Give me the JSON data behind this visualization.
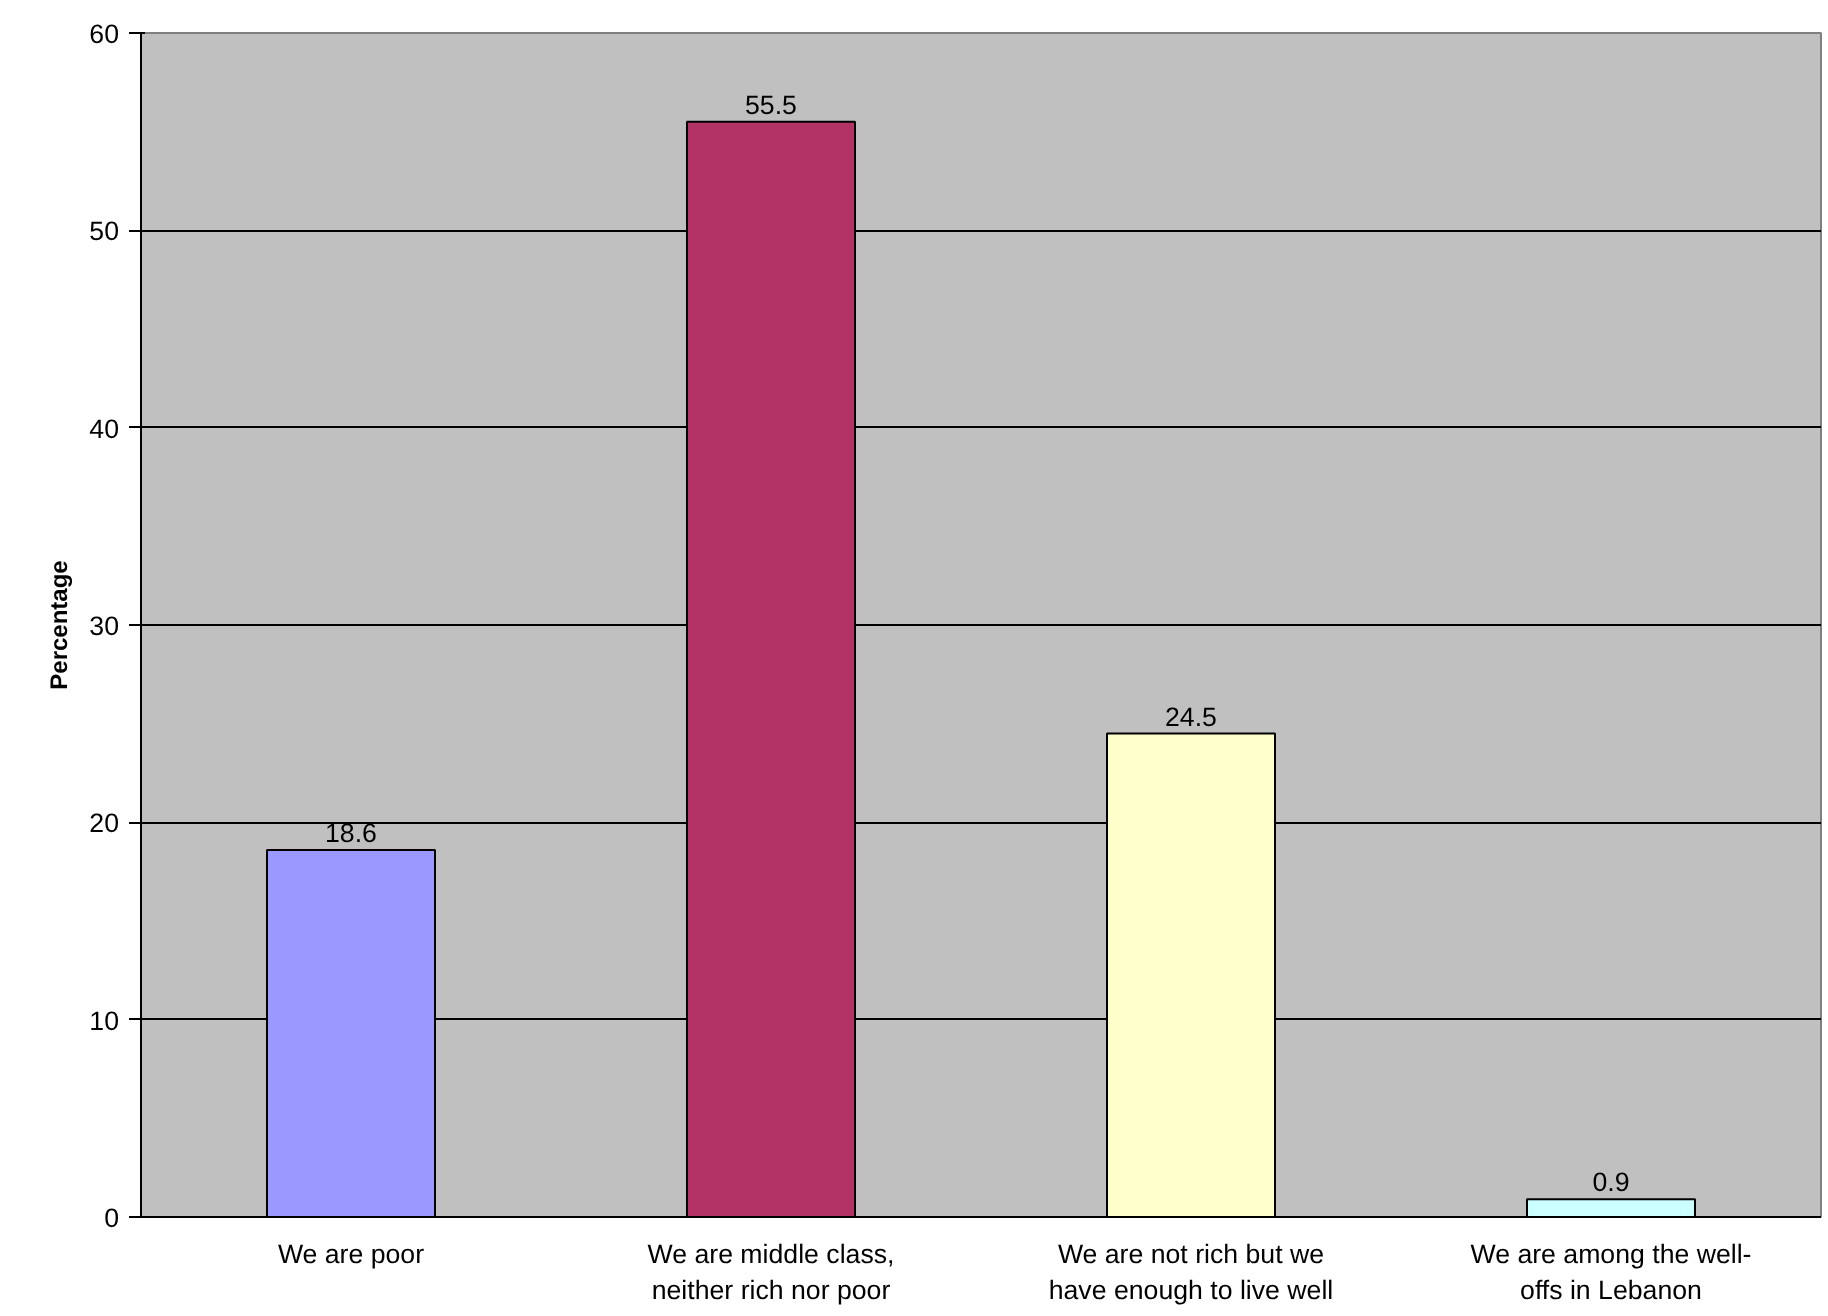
{
  "chart_data": {
    "type": "bar",
    "ylabel": "Percentage",
    "categories": [
      "We are poor",
      "We are middle class, neither rich nor poor",
      "We are not rich but we have enough to live well",
      "We are among the well-offs in Lebanon"
    ],
    "values": [
      18.6,
      55.5,
      24.5,
      0.9
    ],
    "colors": [
      "#9999ff",
      "#b33366",
      "#ffffcc",
      "#ccffff"
    ],
    "ylim": [
      0,
      60
    ],
    "yticks": [
      0,
      10,
      20,
      30,
      40,
      50,
      60
    ],
    "grid": "y",
    "data_labels": true
  }
}
